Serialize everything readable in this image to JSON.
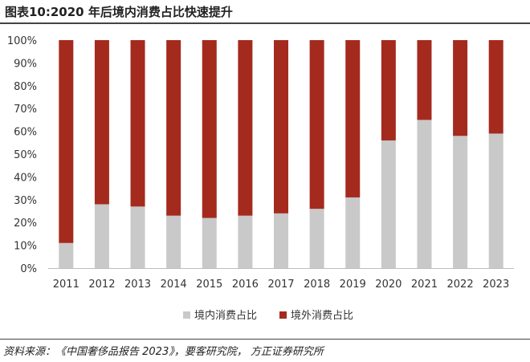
{
  "title": "图表10:2020 年后境内消费占比快速提升",
  "source": "资料来源：《中国奢侈品报告 2023》，要客研究院， 方正证券研究所",
  "chart_data": {
    "type": "bar",
    "stacked": true,
    "percent": true,
    "categories": [
      "2011",
      "2012",
      "2013",
      "2014",
      "2015",
      "2016",
      "2017",
      "2018",
      "2019",
      "2020",
      "2021",
      "2022",
      "2023"
    ],
    "series": [
      {
        "name": "境内消费占比",
        "color": "#c9c9c9",
        "values": [
          11,
          28,
          27,
          23,
          22,
          23,
          24,
          26,
          31,
          56,
          65,
          58,
          59
        ]
      },
      {
        "name": "境外消费占比",
        "color": "#a52a1e",
        "values": [
          89,
          72,
          73,
          77,
          78,
          77,
          76,
          74,
          69,
          44,
          35,
          42,
          41
        ]
      }
    ],
    "ylim": [
      0,
      100
    ],
    "yticks": [
      "0%",
      "10%",
      "20%",
      "30%",
      "40%",
      "50%",
      "60%",
      "70%",
      "80%",
      "90%",
      "100%"
    ],
    "legend_position": "bottom",
    "grid": false
  }
}
